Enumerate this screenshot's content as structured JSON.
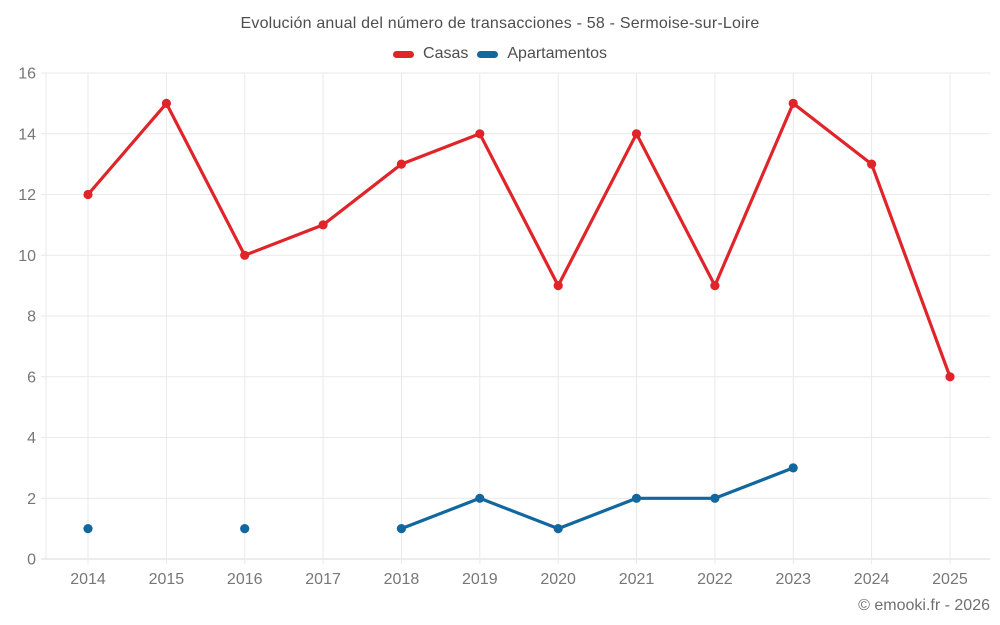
{
  "header": {
    "title": "Evolución anual del número de transacciones - 58 - Sermoise-sur-Loire"
  },
  "legend": {
    "items": [
      {
        "label": "Casas",
        "color": "#e0252a"
      },
      {
        "label": "Apartamentos",
        "color": "#12689e"
      }
    ]
  },
  "footer": {
    "attribution": "© emooki.fr - 2026"
  },
  "chart_data": {
    "type": "line",
    "title": "Evolución anual del número de transacciones - 58 - Sermoise-sur-Loire",
    "x": [
      2014,
      2015,
      2016,
      2017,
      2018,
      2019,
      2020,
      2021,
      2022,
      2023,
      2024,
      2025
    ],
    "series": [
      {
        "name": "Casas",
        "color": "#e0252a",
        "values": [
          12,
          15,
          10,
          11,
          13,
          14,
          9,
          14,
          9,
          15,
          13,
          6
        ]
      },
      {
        "name": "Apartamentos",
        "color": "#12689e",
        "values": [
          1,
          null,
          1,
          null,
          1,
          2,
          1,
          2,
          2,
          3,
          null,
          null
        ]
      }
    ],
    "xlabel": "",
    "ylabel": "",
    "ylim": [
      0,
      16
    ],
    "ytick_step": 2,
    "grid": true,
    "legend_position": "top",
    "style": {
      "grid_line": "#e9e9e9",
      "axis_line": "#d9d9d9",
      "tick_label_color": "#777777",
      "title_color": "#4e4e4e",
      "attribution_color": "#707070",
      "background": "#ffffff"
    }
  }
}
